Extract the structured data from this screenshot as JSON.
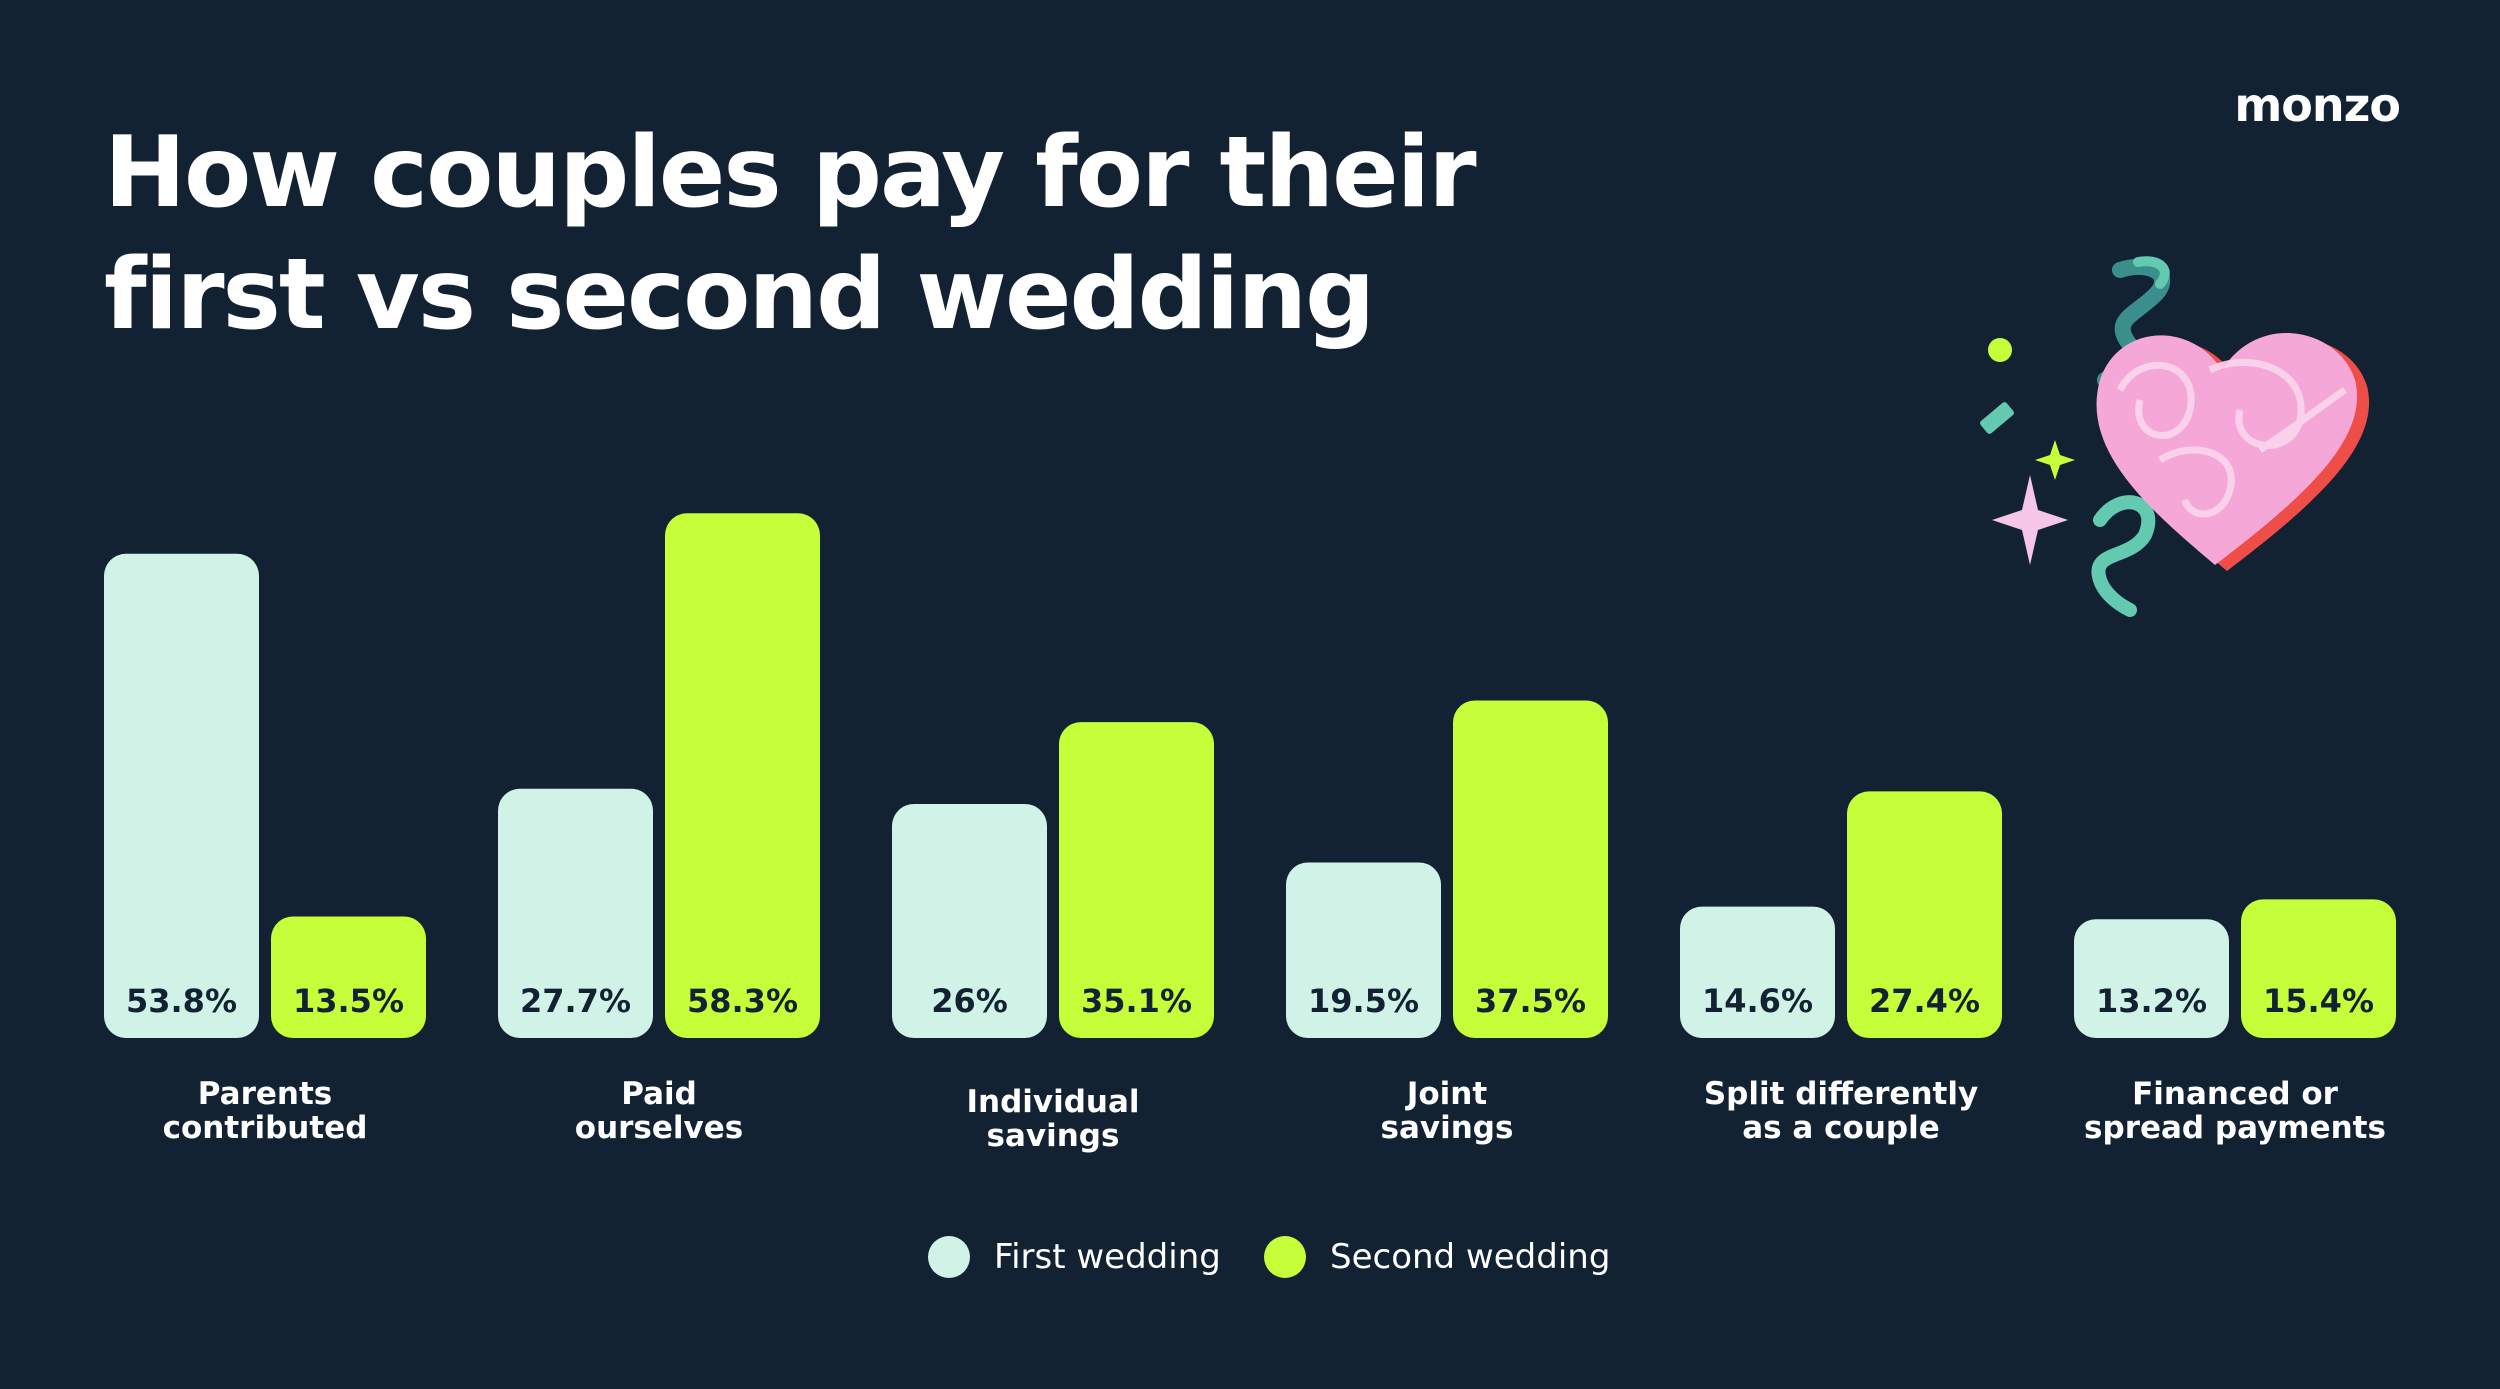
{
  "title": {
    "line1": "How couples pay for their",
    "line2": "first vs second wedding"
  },
  "brand": "monzo",
  "colors": {
    "background": "#132233",
    "first_wedding": "#d1f2e6",
    "second_wedding": "#c6fe3a",
    "bar_label": "#132233",
    "text": "#ffffff",
    "heart": "#f5a8d8",
    "heart_shadow": "#ee4d48",
    "confetti_teal": "#63c9b0",
    "confetti_lime": "#c6fe3a"
  },
  "decoration": [
    "heart-icon",
    "sparkle-icon",
    "confetti-icon",
    "ribbon-icon"
  ],
  "chart_data": {
    "type": "bar",
    "categories": [
      "Parents contributed",
      "Paid ourselves",
      "Individual savings",
      "Joint savings",
      "Split differently as a couple",
      "Financed or spread payments"
    ],
    "series": [
      {
        "name": "First wedding",
        "values": [
          53.8,
          27.7,
          26,
          19.5,
          14.6,
          13.2
        ],
        "labels": [
          "53.8%",
          "27.7%",
          "26%",
          "19.5%",
          "14.6%",
          "13.2%"
        ]
      },
      {
        "name": "Second wedding",
        "values": [
          13.5,
          58.3,
          35.1,
          37.5,
          27.4,
          15.4
        ],
        "labels": [
          "13.5%",
          "58.3%",
          "35.1%",
          "37.5%",
          "27.4%",
          "15.4%"
        ]
      }
    ],
    "category_lines": [
      [
        "Parents",
        "contributed"
      ],
      [
        "Paid",
        "ourselves"
      ],
      [
        "Individual",
        "savings"
      ],
      [
        "Joint",
        "savings"
      ],
      [
        "Split differently",
        "as a couple"
      ],
      [
        "Financed or",
        "spread payments"
      ]
    ],
    "unit": "%",
    "legend": [
      "First wedding",
      "Second wedding"
    ],
    "legend_position": "bottom-center",
    "grid": false
  }
}
